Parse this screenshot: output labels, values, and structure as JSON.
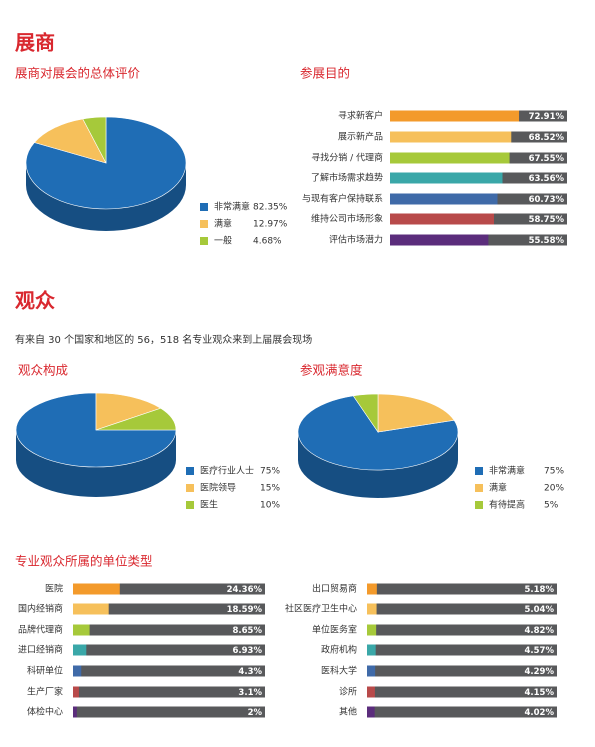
{
  "headings": [
    "展商",
    "观众"
  ],
  "intro": "有来自 30 个国家和地区的 56，518 名专业观众来到上届展会现场",
  "chart_data": [
    {
      "type": "pie",
      "title": "展商对展会的总体评价",
      "categories": [
        "非常满意",
        "满意",
        "一般"
      ],
      "values": [
        82.35,
        12.97,
        4.68
      ],
      "value_labels": [
        "82.35%",
        "12.97%",
        "4.68%"
      ],
      "colors": [
        "#1f6db5",
        "#f6c05b",
        "#a6c93a"
      ]
    },
    {
      "type": "bar",
      "title": "参展目的",
      "categories": [
        "寻求新客户",
        "展示新产品",
        "寻找分销 / 代理商",
        "了解市场需求趋势",
        "与现有客户保持联系",
        "维持公司市场形象",
        "评估市场潜力"
      ],
      "values": [
        72.91,
        68.52,
        67.55,
        63.56,
        60.73,
        58.75,
        55.58
      ],
      "value_labels": [
        "72.91%",
        "68.52%",
        "67.55%",
        "63.56%",
        "60.73%",
        "58.75%",
        "55.58%"
      ],
      "colors": [
        "#f39a2b",
        "#f6c05b",
        "#a6c93a",
        "#3aa7a8",
        "#3f6aa8",
        "#b84a4a",
        "#5b2d7c"
      ],
      "xlim": [
        0,
        100
      ]
    },
    {
      "type": "pie",
      "title": "观众构成",
      "categories": [
        "医疗行业人士",
        "医院领导",
        "医生"
      ],
      "values": [
        75,
        15,
        10
      ],
      "value_labels": [
        "75%",
        "15%",
        "10%"
      ],
      "colors": [
        "#1f6db5",
        "#f6c05b",
        "#a6c93a"
      ]
    },
    {
      "type": "pie",
      "title": "参观满意度",
      "categories": [
        "非常满意",
        "满意",
        "有待提高"
      ],
      "values": [
        75,
        20,
        5
      ],
      "value_labels": [
        "75%",
        "20%",
        "5%"
      ],
      "colors": [
        "#1f6db5",
        "#f6c05b",
        "#a6c93a"
      ]
    },
    {
      "type": "bar",
      "title": "专业观众所属的单位类型",
      "categories": [
        "医院",
        "国内经销商",
        "品牌代理商",
        "进口经销商",
        "科研单位",
        "生产厂家",
        "体检中心",
        "出口贸易商",
        "社区医疗卫生中心",
        "单位医务室",
        "政府机构",
        "医科大学",
        "诊所",
        "其他"
      ],
      "values": [
        24.36,
        18.59,
        8.65,
        6.93,
        4.3,
        3.1,
        2,
        5.18,
        5.04,
        4.82,
        4.57,
        4.29,
        4.15,
        4.02
      ],
      "value_labels": [
        "24.36%",
        "18.59%",
        "8.65%",
        "6.93%",
        "4.3%",
        "3.1%",
        "2%",
        "5.18%",
        "5.04%",
        "4.82%",
        "4.57%",
        "4.29%",
        "4.15%",
        "4.02%"
      ],
      "colors": [
        "#f39a2b",
        "#f6c05b",
        "#a6c93a",
        "#3aa7a8",
        "#3f6aa8",
        "#b84a4a",
        "#5b2d7c",
        "#f39a2b",
        "#f6c05b",
        "#a6c93a",
        "#3aa7a8",
        "#3f6aa8",
        "#b84a4a",
        "#5b2d7c"
      ],
      "xlim": [
        0,
        100
      ]
    }
  ]
}
